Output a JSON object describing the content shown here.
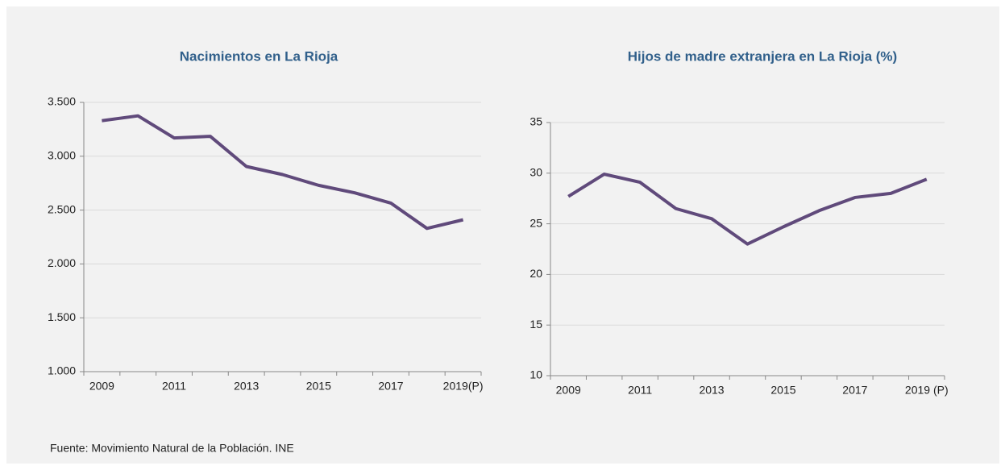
{
  "chart_data": [
    {
      "type": "line",
      "title": "Nacimientos en La Rioja",
      "categories": [
        "2009",
        null,
        "2011",
        null,
        "2013",
        null,
        "2015",
        null,
        "2017",
        null,
        "2019(P)"
      ],
      "series": [
        {
          "name": "Nacimientos",
          "color": "#604a7b",
          "values": [
            3330,
            3375,
            3170,
            3185,
            2905,
            2830,
            2730,
            2660,
            2565,
            2330,
            2410
          ]
        }
      ],
      "ylim": [
        1000,
        3500
      ],
      "yticks": [
        {
          "value": 1000,
          "label": "1.000"
        },
        {
          "value": 1500,
          "label": "1.500"
        },
        {
          "value": 2000,
          "label": "2.000"
        },
        {
          "value": 2500,
          "label": "2.500"
        },
        {
          "value": 3000,
          "label": "3.000"
        },
        {
          "value": 3500,
          "label": "3.500"
        }
      ],
      "grid": true
    },
    {
      "type": "line",
      "title": "Hijos de madre extranjera en La Rioja (%)",
      "categories": [
        "2009",
        null,
        "2011",
        null,
        "2013",
        null,
        "2015",
        null,
        "2017",
        null,
        "2019 (P)"
      ],
      "series": [
        {
          "name": "Hijos de madre extranjera",
          "color": "#604a7b",
          "values": [
            27.7,
            29.9,
            29.1,
            26.5,
            25.5,
            23.0,
            24.7,
            26.3,
            27.6,
            28.0,
            29.4
          ]
        }
      ],
      "ylim": [
        10,
        35
      ],
      "yticks": [
        10,
        15,
        20,
        25,
        30,
        35
      ],
      "grid": true
    }
  ],
  "source": "Fuente: Movimiento Natural de la Población. INE"
}
